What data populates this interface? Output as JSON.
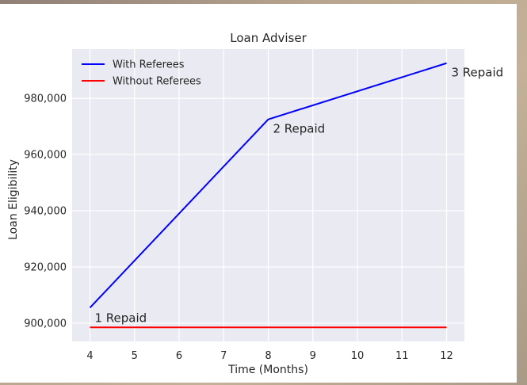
{
  "chart_data": {
    "type": "line",
    "title": "Loan Adviser",
    "xlabel": "Time (Months)",
    "ylabel": "Loan Eligibility",
    "xlim": [
      3.6,
      12.4
    ],
    "ylim": [
      893500,
      997500
    ],
    "x_ticks": [
      4,
      5,
      6,
      7,
      8,
      9,
      10,
      11,
      12
    ],
    "y_ticks": [
      900000,
      920000,
      940000,
      960000,
      980000
    ],
    "y_tick_labels": [
      "900,000",
      "920,000",
      "940,000",
      "960,000",
      "980,000"
    ],
    "grid": true,
    "legend": "top-left",
    "series": [
      {
        "name": "With Referees",
        "color": "#0000ff",
        "x": [
          4,
          8,
          12
        ],
        "y": [
          905500,
          972500,
          992500
        ]
      },
      {
        "name": "Without Referees",
        "color": "#ff0000",
        "x": [
          4,
          12
        ],
        "y": [
          898500,
          898500
        ]
      }
    ],
    "annotations": [
      {
        "text": "1 Repaid",
        "x": 4,
        "y": 898500
      },
      {
        "text": "2 Repaid",
        "x": 8,
        "y": 972500
      },
      {
        "text": "3 Repaid",
        "x": 12,
        "y": 992500
      }
    ]
  },
  "colors": {
    "plot_background": "#eaeaf2",
    "grid": "#ffffff",
    "text": "#262626"
  }
}
